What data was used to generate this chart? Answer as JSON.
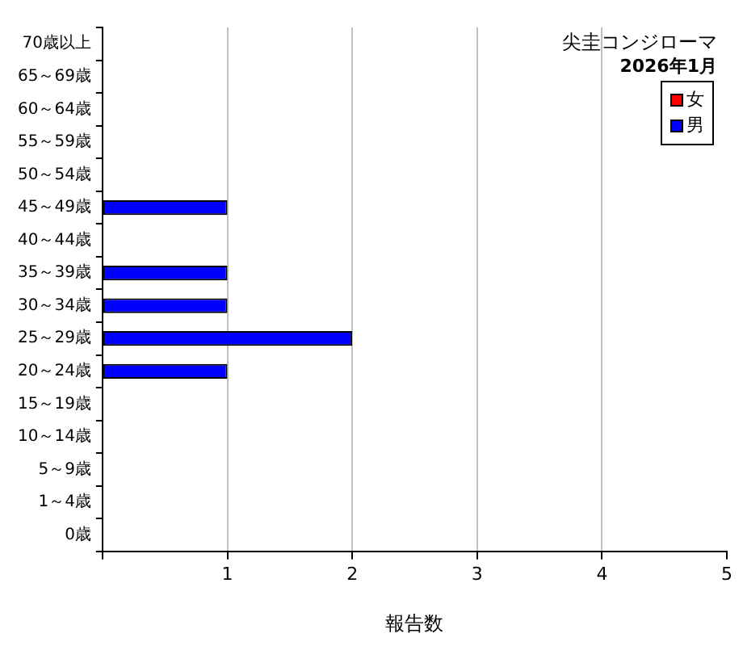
{
  "chart_data": {
    "type": "bar",
    "orientation": "horizontal",
    "stacked": true,
    "title": "尖圭コンジローマ",
    "subtitle": "2026年1月",
    "xlabel": "報告数",
    "categories": [
      "70歳以上",
      "65～69歳",
      "60～64歳",
      "55～59歳",
      "50～54歳",
      "45～49歳",
      "40～44歳",
      "35～39歳",
      "30～34歳",
      "25～29歳",
      "20～24歳",
      "15～19歳",
      "10～14歳",
      "5～9歳",
      "1～4歳",
      "0歳"
    ],
    "series": [
      {
        "name": "女",
        "color": "#ff0000",
        "values": [
          0,
          0,
          0,
          0,
          0,
          0,
          0,
          0,
          0,
          0,
          0,
          0,
          0,
          0,
          0,
          0
        ]
      },
      {
        "name": "男",
        "color": "#0000ff",
        "values": [
          0,
          0,
          0,
          0,
          0,
          1,
          0,
          1,
          1,
          2,
          1,
          0,
          0,
          0,
          0,
          0
        ]
      }
    ],
    "xlim": [
      0,
      5
    ],
    "xticks": [
      {
        "value": 0,
        "label": null
      },
      1,
      2,
      3,
      4,
      5
    ],
    "grid": "x",
    "legend": "top right"
  }
}
